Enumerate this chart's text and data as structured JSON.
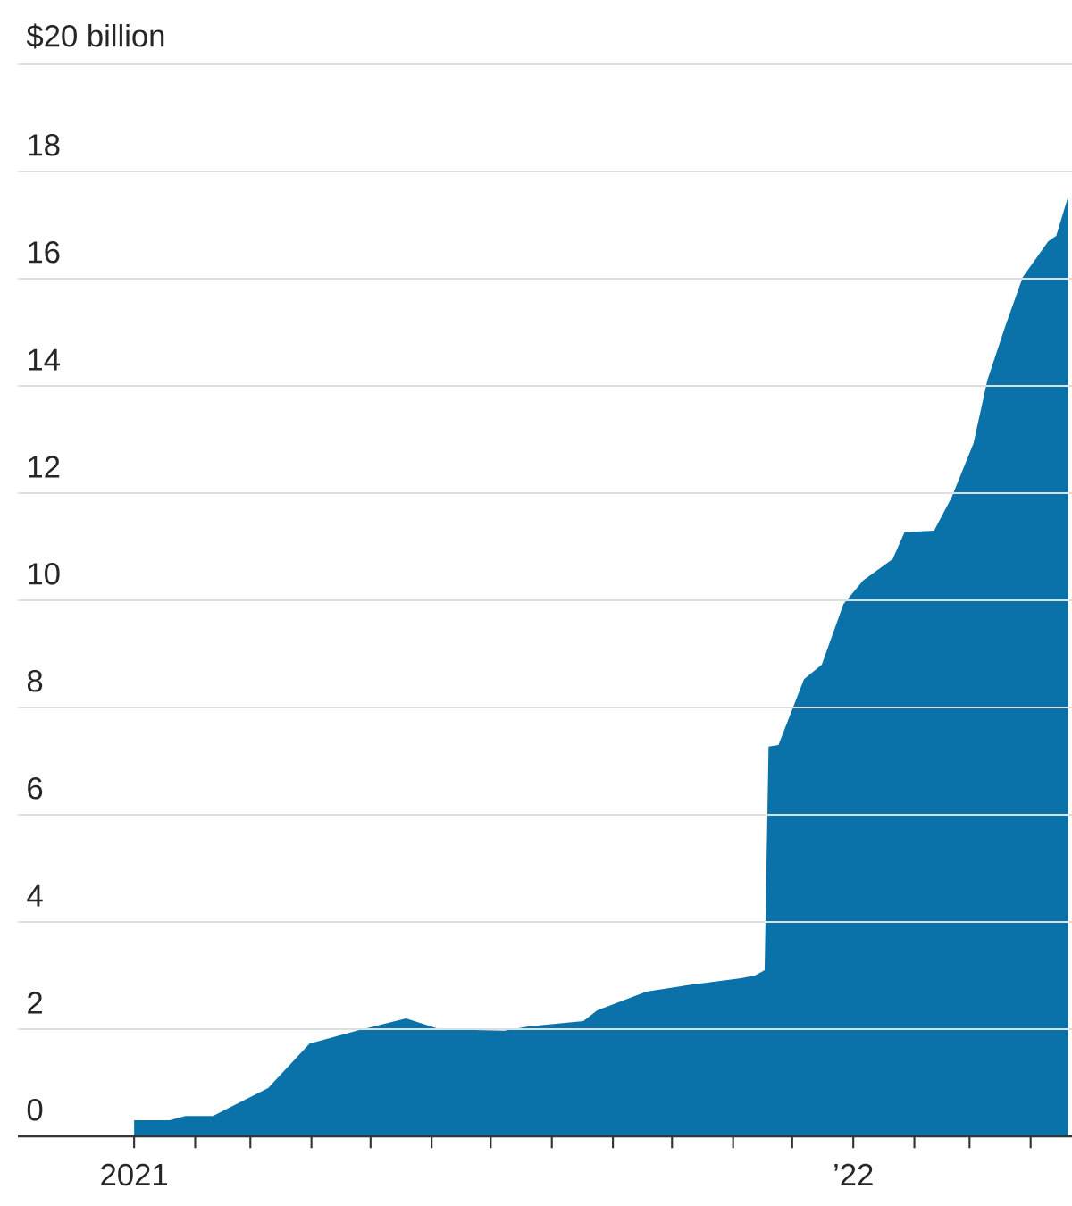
{
  "chart_data": {
    "type": "area",
    "x": [
      "2021-01-01",
      "2021-01-19",
      "2021-01-27",
      "2021-02-10",
      "2021-03-10",
      "2021-03-31",
      "2021-04-24",
      "2021-05-19",
      "2021-06-05",
      "2021-07-08",
      "2021-07-20",
      "2021-08-17",
      "2021-08-24",
      "2021-09-18",
      "2021-10-09",
      "2021-11-05",
      "2021-11-12",
      "2021-11-17",
      "2021-11-19",
      "2021-11-24",
      "2021-12-07",
      "2021-12-16",
      "2021-12-27",
      "2022-01-06",
      "2022-01-21",
      "2022-01-27",
      "2022-02-11",
      "2022-02-20",
      "2022-03-03",
      "2022-03-10",
      "2022-03-19",
      "2022-03-28",
      "2022-04-10",
      "2022-04-14",
      "2022-04-20"
    ],
    "values": [
      0.3,
      0.3,
      0.38,
      0.38,
      0.9,
      1.73,
      1.97,
      2.2,
      2.0,
      1.97,
      2.05,
      2.15,
      2.35,
      2.7,
      2.82,
      2.95,
      3.0,
      3.1,
      7.27,
      7.3,
      8.53,
      8.8,
      9.93,
      10.37,
      10.77,
      11.27,
      11.3,
      11.93,
      12.93,
      14.1,
      15.1,
      16.03,
      16.7,
      16.8,
      17.53
    ],
    "color": "#0b72a9",
    "xlim": [
      "2020-11-03",
      "2022-04-22"
    ],
    "ylim": [
      0,
      20
    ],
    "yticks": [
      0,
      2,
      4,
      6,
      8,
      10,
      12,
      14,
      16,
      18,
      {
        "value": 20,
        "label": "$20 billion"
      }
    ],
    "xticks": [
      {
        "value": "2021-01-01",
        "label": "2021"
      },
      {
        "value": "2021-02-01",
        "label": null
      },
      {
        "value": "2021-03-01",
        "label": null
      },
      {
        "value": "2021-04-01",
        "label": null
      },
      {
        "value": "2021-05-01",
        "label": null
      },
      {
        "value": "2021-06-01",
        "label": null
      },
      {
        "value": "2021-07-01",
        "label": null
      },
      {
        "value": "2021-08-01",
        "label": null
      },
      {
        "value": "2021-09-01",
        "label": null
      },
      {
        "value": "2021-10-01",
        "label": null
      },
      {
        "value": "2021-11-01",
        "label": null
      },
      {
        "value": "2021-12-01",
        "label": null
      },
      {
        "value": "2022-01-01",
        "label": "’22"
      },
      {
        "value": "2022-02-01",
        "label": null
      },
      {
        "value": "2022-03-01",
        "label": null
      },
      {
        "value": "2022-04-01",
        "label": null
      }
    ],
    "grid": "y"
  }
}
